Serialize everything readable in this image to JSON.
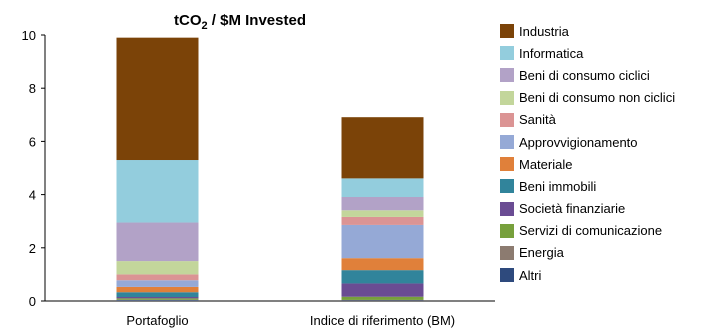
{
  "chart_data": {
    "type": "bar",
    "stacked": true,
    "title": "tCO",
    "title_subscript": "2",
    "title_suffix": " / $M Invested",
    "xlabel": "",
    "ylabel": "",
    "ylim": [
      0,
      10
    ],
    "yticks": [
      "0",
      "2",
      "4",
      "6",
      "8",
      "10"
    ],
    "grid": false,
    "legend_position": "right",
    "categories": [
      "Portafoglio",
      "Indice di riferimento (BM)"
    ],
    "series": [
      {
        "name": "Altri",
        "color": "#2E4A7D",
        "values": [
          0.03,
          0.02
        ]
      },
      {
        "name": "Energia",
        "color": "#8C7B70",
        "values": [
          0.02,
          0.02
        ]
      },
      {
        "name": "Servizi di comunicazione",
        "color": "#77A03C",
        "values": [
          0.05,
          0.12
        ]
      },
      {
        "name": "Società finanziarie",
        "color": "#6A4C93",
        "values": [
          0.05,
          0.5
        ]
      },
      {
        "name": "Beni immobili",
        "color": "#31849B",
        "values": [
          0.18,
          0.5
        ]
      },
      {
        "name": "Materiale",
        "color": "#E0803A",
        "values": [
          0.2,
          0.45
        ]
      },
      {
        "name": "Approvvigionamento",
        "color": "#95A9D6",
        "values": [
          0.25,
          1.25
        ]
      },
      {
        "name": "Sanità",
        "color": "#DB9494",
        "values": [
          0.22,
          0.3
        ]
      },
      {
        "name": "Beni di consumo non ciclici",
        "color": "#C3D69B",
        "values": [
          0.5,
          0.25
        ]
      },
      {
        "name": "Beni di consumo ciclici",
        "color": "#B2A2C7",
        "values": [
          1.45,
          0.5
        ]
      },
      {
        "name": "Informatica",
        "color": "#93CDDD",
        "values": [
          2.35,
          0.7
        ]
      },
      {
        "name": "Industria",
        "color": "#7B4308",
        "values": [
          4.6,
          2.3
        ]
      }
    ]
  }
}
